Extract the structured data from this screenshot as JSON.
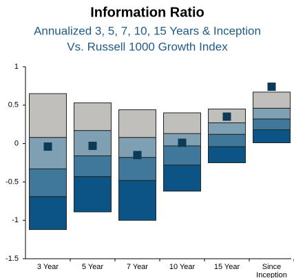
{
  "chart_data": {
    "type": "floating-box",
    "title": "Information Ratio",
    "subtitle": [
      "Annualized 3, 5, 7, 10, 15 Years & Inception",
      "Vs. Russell 1000 Growth Index"
    ],
    "categories": [
      "3 Year",
      "5 Year",
      "7 Year",
      "10 Year",
      "15 Year",
      "Since Inception"
    ],
    "percentiles": [
      [
        -1.12,
        -0.69,
        -0.33,
        0.08,
        0.65
      ],
      [
        -0.89,
        -0.43,
        -0.16,
        0.17,
        0.53
      ],
      [
        -1.0,
        -0.48,
        -0.18,
        0.08,
        0.44
      ],
      [
        -0.62,
        -0.28,
        -0.03,
        0.13,
        0.4
      ],
      [
        -0.25,
        -0.04,
        0.12,
        0.27,
        0.45
      ],
      [
        0.01,
        0.18,
        0.32,
        0.46,
        0.67
      ]
    ],
    "band_colors": [
      "#0a5585",
      "#3f789a",
      "#7f9fb3",
      "#c0bfbc"
    ],
    "values": [
      -0.04,
      -0.03,
      -0.15,
      0.01,
      0.35,
      0.74
    ],
    "color": "#0d3a57",
    "ylim": [
      -1.5,
      1
    ],
    "yticks": [
      -1.5,
      -1,
      -0.5,
      0,
      0.5,
      1
    ]
  }
}
